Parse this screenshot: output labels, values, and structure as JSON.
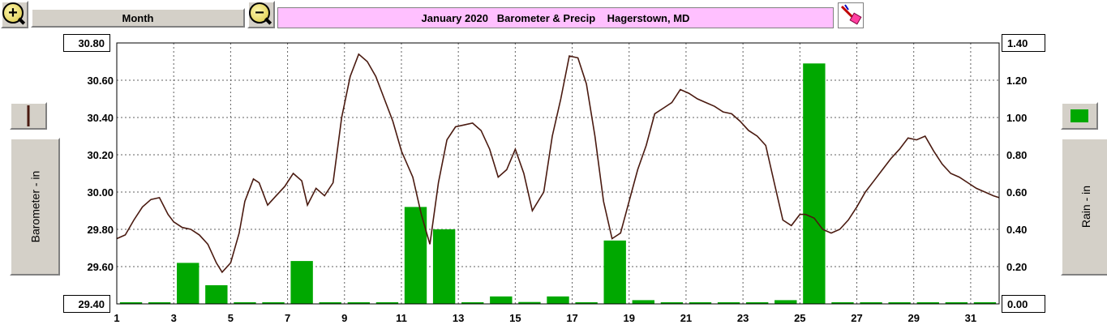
{
  "toolbar": {
    "zoom_in_icon": "zoom-in-icon",
    "month_label": "Month",
    "zoom_out_icon": "zoom-out-icon",
    "title": "January 2020   Barometer & Precip    Hagerstown, MD",
    "tool_icon": "paint-tool-icon"
  },
  "legend": {
    "left_series_label": "Barometer - in",
    "right_series_label": "Rain - in"
  },
  "colors": {
    "barometer_line": "#4a1a10",
    "rain_bar": "#00a800",
    "title_bg": "#ffc0ff"
  },
  "chart_data": {
    "type": "bar+line",
    "title": "January 2020   Barometer & Precip    Hagerstown, MD",
    "ylabel_left": "Barometer - in",
    "ylabel_right": "Rain - in",
    "ylim_left": [
      29.4,
      30.8
    ],
    "ylim_right": [
      0.0,
      1.4
    ],
    "xlim": [
      1,
      32
    ],
    "grid": true,
    "y_left_tick_labels": [
      "30.80",
      "30.60",
      "30.40",
      "30.20",
      "30.00",
      "29.80",
      "29.60",
      "29.40"
    ],
    "y_right_tick_labels": [
      "1.40",
      "1.20",
      "1.00",
      "0.80",
      "0.60",
      "0.40",
      "0.20",
      "0.00"
    ],
    "x_tick_labels": [
      "1",
      "3",
      "5",
      "7",
      "9",
      "11",
      "13",
      "15",
      "17",
      "19",
      "21",
      "23",
      "25",
      "27",
      "29",
      "31"
    ],
    "rain": {
      "days": [
        1,
        2,
        3,
        4,
        5,
        6,
        7,
        8,
        9,
        10,
        11,
        12,
        13,
        14,
        15,
        16,
        17,
        18,
        19,
        20,
        21,
        22,
        23,
        24,
        25,
        26,
        27,
        28,
        29,
        30,
        31
      ],
      "values": [
        0.0,
        0.0,
        0.22,
        0.1,
        0.0,
        0.0,
        0.23,
        0.0,
        0.0,
        0.0,
        0.52,
        0.4,
        0.0,
        0.04,
        0.01,
        0.04,
        0.0,
        0.34,
        0.02,
        0.0,
        0.0,
        0.0,
        0.0,
        0.02,
        1.29,
        0.0,
        0.0,
        0.0,
        0.0,
        0.0,
        0.0
      ]
    },
    "barometer": {
      "x": [
        1.0,
        1.3,
        1.6,
        1.9,
        2.2,
        2.5,
        2.8,
        3.0,
        3.3,
        3.6,
        3.9,
        4.2,
        4.5,
        4.7,
        5.0,
        5.3,
        5.5,
        5.8,
        6.0,
        6.3,
        6.6,
        6.9,
        7.2,
        7.5,
        7.7,
        8.0,
        8.3,
        8.6,
        8.9,
        9.2,
        9.5,
        9.8,
        10.1,
        10.4,
        10.7,
        11.0,
        11.4,
        11.7,
        12.0,
        12.3,
        12.6,
        12.9,
        13.2,
        13.5,
        13.8,
        14.1,
        14.4,
        14.7,
        15.0,
        15.3,
        15.6,
        16.0,
        16.3,
        16.6,
        16.9,
        17.2,
        17.5,
        17.8,
        18.1,
        18.4,
        18.7,
        19.0,
        19.3,
        19.6,
        19.9,
        20.2,
        20.5,
        20.8,
        21.1,
        21.4,
        21.7,
        22.0,
        22.3,
        22.6,
        22.9,
        23.2,
        23.5,
        23.8,
        24.1,
        24.4,
        24.7,
        25.0,
        25.2,
        25.5,
        25.8,
        26.1,
        26.4,
        26.7,
        27.0,
        27.3,
        27.6,
        27.9,
        28.2,
        28.5,
        28.8,
        29.1,
        29.4,
        29.7,
        30.0,
        30.3,
        30.6,
        30.9,
        31.2,
        31.5,
        31.8,
        32.0
      ],
      "y": [
        29.75,
        29.77,
        29.85,
        29.92,
        29.96,
        29.97,
        29.88,
        29.84,
        29.81,
        29.8,
        29.77,
        29.72,
        29.62,
        29.57,
        29.62,
        29.78,
        29.95,
        30.07,
        30.05,
        29.93,
        29.98,
        30.03,
        30.1,
        30.06,
        29.93,
        30.02,
        29.98,
        30.05,
        30.4,
        30.62,
        30.74,
        30.7,
        30.62,
        30.5,
        30.38,
        30.22,
        30.08,
        29.88,
        29.72,
        30.05,
        30.28,
        30.35,
        30.36,
        30.37,
        30.33,
        30.23,
        30.08,
        30.12,
        30.23,
        30.1,
        29.9,
        30.0,
        30.3,
        30.5,
        30.73,
        30.72,
        30.58,
        30.3,
        29.95,
        29.75,
        29.78,
        29.95,
        30.12,
        30.25,
        30.42,
        30.45,
        30.48,
        30.55,
        30.53,
        30.5,
        30.48,
        30.46,
        30.43,
        30.42,
        30.38,
        30.33,
        30.3,
        30.25,
        30.05,
        29.85,
        29.82,
        29.88,
        29.88,
        29.86,
        29.8,
        29.78,
        29.8,
        29.85,
        29.92,
        30.0,
        30.06,
        30.12,
        30.18,
        30.23,
        30.29,
        30.28,
        30.3,
        30.22,
        30.15,
        30.1,
        30.08,
        30.05,
        30.02,
        30.0,
        29.98,
        29.97
      ]
    }
  }
}
